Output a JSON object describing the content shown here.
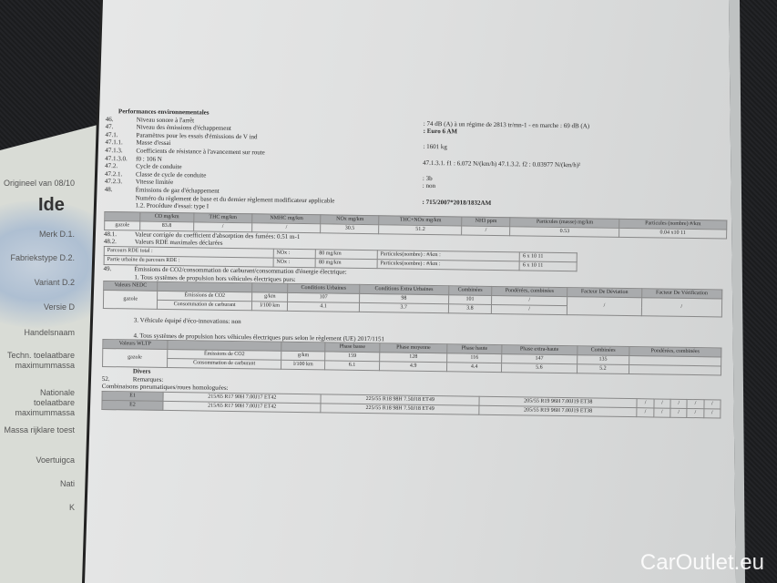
{
  "background_doc": {
    "header": "Origineel van 08/10",
    "title": "Ide",
    "labels": [
      "Merk D.1.",
      "Fabriekstype D.2.",
      "Variant D.2",
      "Versie D",
      "Handelsnaam",
      "Techn. toelaatbare maximummassa",
      "Nationale toelaatbare maximummassa",
      "Massa rijklare toest",
      "Voertuigca",
      "Nati",
      "K"
    ]
  },
  "section_title": "Performances environnementales",
  "items": [
    {
      "num": "46.",
      "label": "Niveau sonore à l'arrêt",
      "value": ": 74 dB (A)  à un régime de 2813 tr/mn-1 - en marche :  69 dB (A)"
    },
    {
      "num": "47.",
      "label": "Niveau des émissions d'échappement",
      "value": ": Euro 6 AM"
    },
    {
      "num": "47.1.",
      "label": "Paramètres pour les essais d'émissions de V ind",
      "value": ""
    },
    {
      "num": "47.1.1.",
      "label": "Masse d'essai",
      "value": ": 1601          kg"
    },
    {
      "num": "47.1.3.",
      "label": "Coefficients de résistance à l'avancement sur route",
      "value": ""
    },
    {
      "num": "47.1.3.0.",
      "label": "f0        : 106 N",
      "value": "47.1.3.1. f1     : 6.072 N/(km/h)        47.1.3.2. f2     : 0.03977 N/(km/h)²"
    },
    {
      "num": "47.2.",
      "label": "Cycle de conduite",
      "value": ""
    },
    {
      "num": "47.2.1.",
      "label": "Classe de cycle de conduite",
      "value": ": 3b"
    },
    {
      "num": "47.2.3.",
      "label": "Vitesse limitée",
      "value": ": non"
    },
    {
      "num": "48.",
      "label": "Émissions de gaz d'échappement",
      "value": ""
    },
    {
      "num": "",
      "label": "Numéro du règlement de base et du dernier règlement modificateur applicable",
      "value": ": 715/2007*2018/1832AM"
    },
    {
      "num": "",
      "label": "1.2. Procédure d'essai: type I",
      "value": ""
    }
  ],
  "emissions_table": {
    "headers": [
      "",
      "CO mg/km",
      "THC mg/km",
      "NMHC mg/km",
      "NOx mg/km",
      "THC+NOx mg/km",
      "NH3 ppm",
      "Particules (masse) mg/km",
      "Particules (nombre) #/km"
    ],
    "row": [
      "gazole",
      "83.8",
      "/",
      "/",
      "30.5",
      "51.2",
      "/",
      "0.53",
      "0.04 x10 11"
    ]
  },
  "item_48_1": {
    "num": "48.1.",
    "label": "Valeur corrigée du coefficient d'absorption des fumées: 0.51 m-1"
  },
  "item_48_2": {
    "num": "48.2.",
    "label": "Valeurs RDE maximales déclarées"
  },
  "rde_table": [
    [
      "Parcours RDE total :",
      "NOx :",
      "80 mg/km",
      "Particules(nombre) : #/km :",
      "6 x 10 11"
    ],
    [
      "Partie urbaine du parcours RDE  :",
      "NOx :",
      "80 mg/km",
      "Particules(nombre) : #/km :",
      "6 x 10 11"
    ]
  ],
  "item_49": {
    "num": "49.",
    "label": "Émissions de CO2/consommation de carburant/consommation d'énergie électrique:"
  },
  "nedc_intro": "1. Tous systèmes de propulsion hors véhicules électriques purs:",
  "nedc_table": {
    "headers": [
      "Valeurs NEDC",
      "",
      "",
      "Conditions Urbaines",
      "Conditions Extra Urbaines",
      "Combinées",
      "Pondérées, combinées",
      "Facteur De Déviation",
      "Facteur De Vérification"
    ],
    "fuel": "gazole",
    "rows": [
      [
        "Émissions de CO2",
        "g/km",
        "107",
        "98",
        "101",
        "/"
      ],
      [
        "Consommation de carburant",
        "l/100 km",
        "4.1",
        "3.7",
        "3.8",
        "/"
      ]
    ],
    "deviation": "/",
    "verification": "/"
  },
  "eco_innovations": "3. Véhicule équipé d'éco-innovations: non",
  "wltp_intro": "4. Tous systèmes de propulsion hors véhicules électriques purs selon le règlement (UE) 2017/1151",
  "wltp_table": {
    "headers": [
      "Valeurs WLTP",
      "",
      "",
      "Phase basse",
      "Phase moyenne",
      "Phase haute",
      "Phase extra-haute",
      "Combinées",
      "Pondérées, combinées"
    ],
    "fuel": "gazole",
    "rows": [
      [
        "Émissions de CO2",
        "g/km",
        "159",
        "128",
        "116",
        "147",
        "135",
        ""
      ],
      [
        "Consommation de carburant",
        "l/100 km",
        "6.1",
        "4.9",
        "4.4",
        "5.6",
        "5.2",
        ""
      ]
    ]
  },
  "divers": "Divers",
  "remarks": {
    "num": "52.",
    "label": "Remarques:"
  },
  "tyres_title": "Combinaisons pneumatiques/roues homologuées:",
  "tyres": [
    {
      "axle": "E1",
      "cells": [
        "215/65 R17 90H 7.00J17 ET42",
        "225/55 R18 98H 7.50J18 ET49",
        "205/55 R19 96H 7.00J19 ET38",
        "/",
        "/",
        "/",
        "/",
        "/"
      ]
    },
    {
      "axle": "E2",
      "cells": [
        "215/65 R17 90H 7.00J17 ET42",
        "225/55 R18 98H 7.50J18 ET49",
        "205/55 R19 96H 7.00J19 ET38",
        "/",
        "/",
        "/",
        "/",
        "/"
      ]
    }
  ],
  "watermark": "CarOutlet.eu"
}
